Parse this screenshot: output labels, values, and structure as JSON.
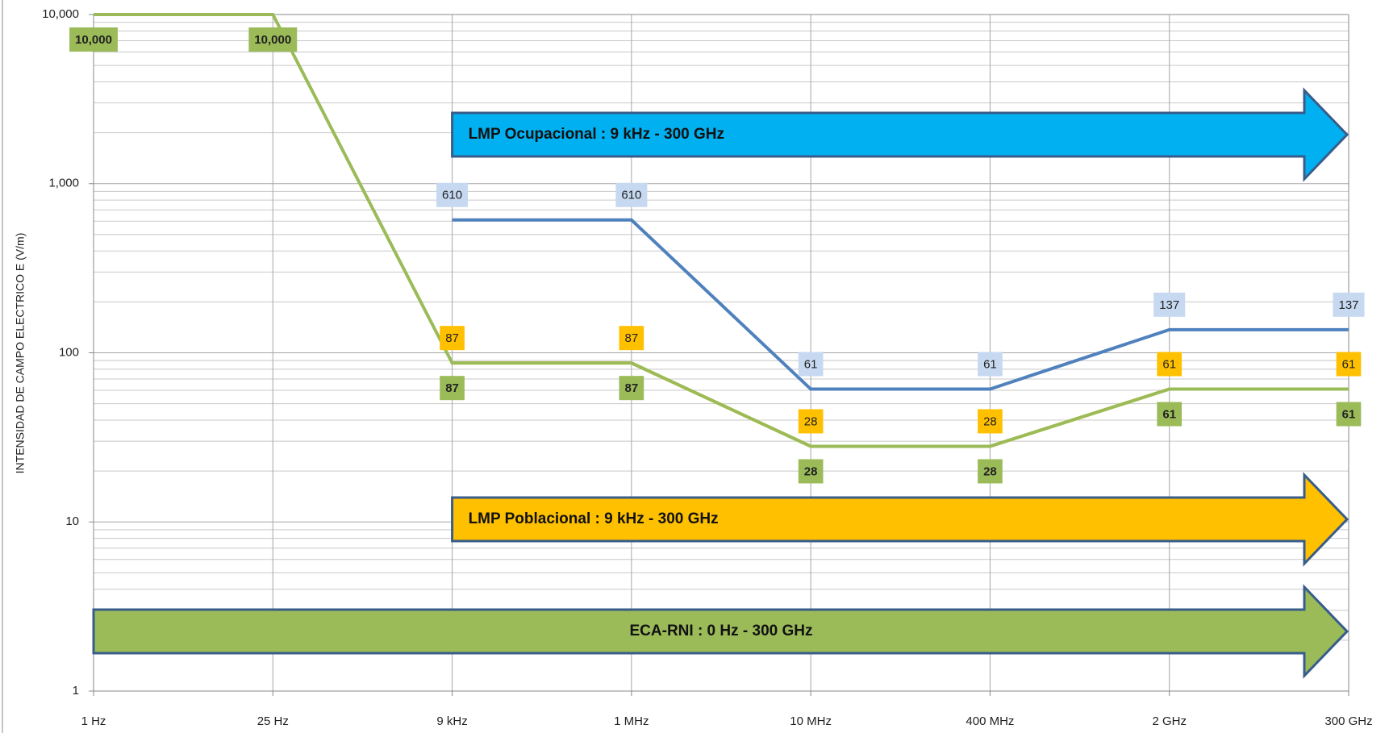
{
  "chart_data": {
    "type": "line",
    "y_label": "INTENSIDAD DE CAMPO ELECTRICO  E (V/m)",
    "categories": [
      "1 Hz",
      "25 Hz",
      "9 kHz",
      "1 MHz",
      "10 MHz",
      "400 MHz",
      "2 GHz",
      "300 GHz"
    ],
    "series": [
      {
        "color": "#4f81bd",
        "label_color": "#c6d9f1",
        "label_position": "above",
        "values": [
          null,
          null,
          610,
          610,
          61,
          61,
          137,
          137
        ]
      },
      {
        "color": "#ffc000",
        "label_color": "#ffc000",
        "label_position": "above",
        "values": [
          null,
          null,
          87,
          87,
          28,
          28,
          61,
          61
        ]
      },
      {
        "color": "#9bbb59",
        "label_color": "#9bbb59",
        "label_position": "below",
        "values": [
          10000,
          10000,
          87,
          87,
          28,
          28,
          61,
          61
        ],
        "value_labels": [
          "10,000",
          "10,000",
          "87",
          "87",
          "28",
          "28",
          "61",
          "61"
        ]
      }
    ],
    "ylim": [
      1,
      10000
    ],
    "log_y": true,
    "yticks": [
      {
        "value": 10000,
        "label": "10,000"
      },
      {
        "value": 1000,
        "label": "1,000"
      },
      100,
      10,
      1
    ],
    "grid": true,
    "minor_grid": true,
    "annotations": [
      {
        "text": "LMP Ocupacional :   9 kHz - 300 GHz",
        "color": "#00b0f0"
      },
      {
        "text": "LMP Poblacional :   9 kHz - 300 GHz",
        "color": "#ffc000"
      },
      {
        "text": "ECA-RNI :   0 Hz - 300 GHz",
        "color": "#9bbb59"
      }
    ]
  }
}
